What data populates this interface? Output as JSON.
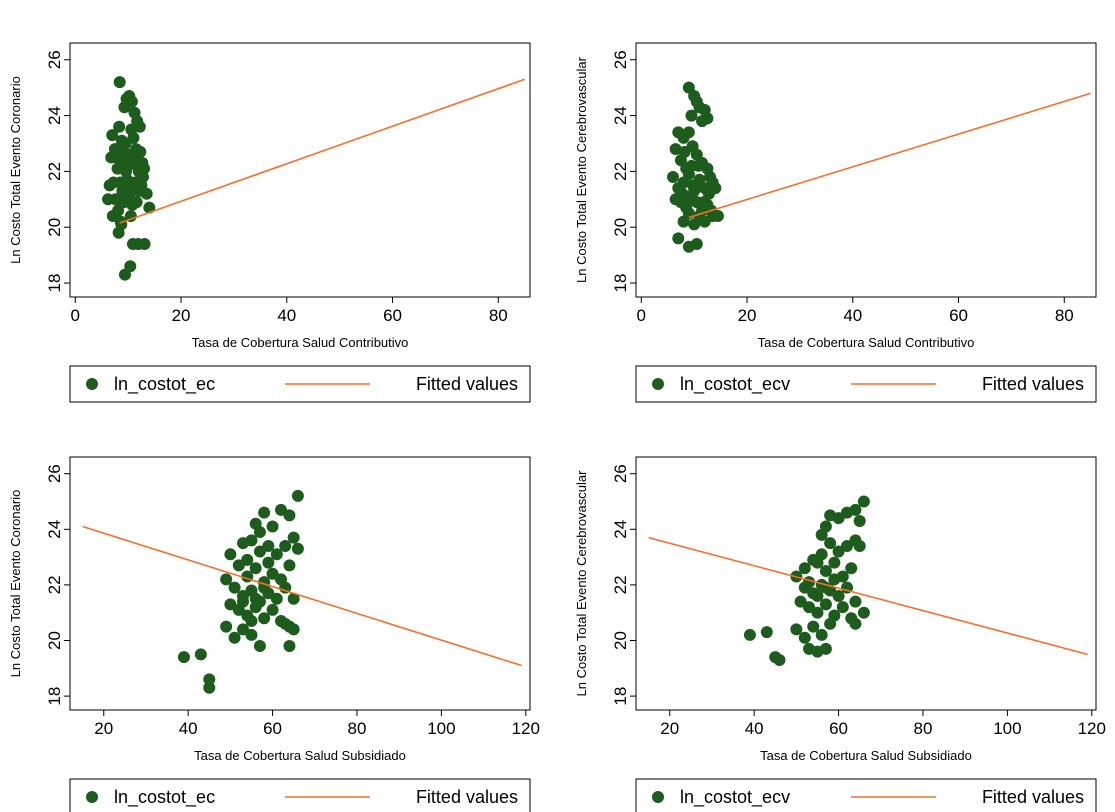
{
  "colors": {
    "points": "#1d5c1d",
    "fitted": "#f4702a",
    "axis": "#000000",
    "background": "#ffffff"
  },
  "chart_data": [
    {
      "type": "scatter",
      "xlabel": "Tasa de Cobertura Salud Contributivo",
      "ylabel": "Ln Costo Total Evento Coronario",
      "xticks": [
        0,
        20,
        40,
        60,
        80
      ],
      "yticks": [
        18,
        20,
        22,
        24,
        26
      ],
      "xlim": [
        -1,
        86
      ],
      "ylim": [
        17.5,
        26.6
      ],
      "grid": false,
      "legend": {
        "position": "bottom",
        "entries": [
          "ln_costot_ec",
          "Fitted values"
        ]
      },
      "series": [
        {
          "name": "ln_costot_ec",
          "kind": "scatter",
          "points": [
            [
              8.4,
              25.2
            ],
            [
              7,
              23.3
            ],
            [
              7.5,
              22.8
            ],
            [
              8,
              22.1
            ],
            [
              8.5,
              21.6
            ],
            [
              9,
              22.4
            ],
            [
              9.5,
              23
            ],
            [
              10,
              22.2
            ],
            [
              10.5,
              21.4
            ],
            [
              11,
              23.2
            ],
            [
              11.5,
              22.8
            ],
            [
              12,
              22
            ],
            [
              12.5,
              21.5
            ],
            [
              13,
              22.1
            ],
            [
              13.5,
              21.2
            ],
            [
              14,
              20.7
            ],
            [
              7.2,
              21.6
            ],
            [
              7.6,
              21
            ],
            [
              8.1,
              20.6
            ],
            [
              8.6,
              20.2
            ],
            [
              9.2,
              20.9
            ],
            [
              9.8,
              21.7
            ],
            [
              10.3,
              21.2
            ],
            [
              10.8,
              20.8
            ],
            [
              11.3,
              21.6
            ],
            [
              11.8,
              22.3
            ],
            [
              12.3,
              22.7
            ],
            [
              12.8,
              21.8
            ],
            [
              6.8,
              22.5
            ],
            [
              6.5,
              21.5
            ],
            [
              6.2,
              21
            ],
            [
              7.8,
              22.5
            ],
            [
              8.3,
              23.6
            ],
            [
              8.8,
              23.1
            ],
            [
              9.3,
              24.3
            ],
            [
              9.7,
              24.6
            ],
            [
              10.2,
              24.7
            ],
            [
              10.7,
              24.5
            ],
            [
              11.2,
              24.1
            ],
            [
              11.7,
              23.8
            ],
            [
              12.2,
              23.6
            ],
            [
              12.7,
              22.3
            ],
            [
              9.1,
              22.8
            ],
            [
              9.6,
              22
            ],
            [
              10.1,
              21.6
            ],
            [
              10.6,
              23.5
            ],
            [
              11.1,
              22.4
            ],
            [
              11.6,
              20.9
            ],
            [
              12.1,
              21.3
            ],
            [
              7.1,
              20.4
            ],
            [
              8.2,
              19.8
            ],
            [
              8.7,
              20.1
            ],
            [
              10.9,
              19.4
            ],
            [
              11.9,
              19.4
            ],
            [
              13.1,
              19.4
            ],
            [
              9.4,
              18.3
            ],
            [
              10.4,
              18.6
            ],
            [
              9.9,
              22.6
            ],
            [
              8.9,
              21.3
            ],
            [
              10.5,
              20.4
            ]
          ]
        },
        {
          "name": "Fitted values",
          "kind": "line",
          "points": [
            [
              8.4,
              20.15
            ],
            [
              85,
              25.3
            ]
          ]
        }
      ]
    },
    {
      "type": "scatter",
      "xlabel": "Tasa de Cobertura Salud Contributivo",
      "ylabel": "Ln Costo Total Evento Cerebrovascular",
      "xticks": [
        0,
        20,
        40,
        60,
        80
      ],
      "yticks": [
        18,
        20,
        22,
        24,
        26
      ],
      "xlim": [
        -1,
        86
      ],
      "ylim": [
        17.5,
        26.6
      ],
      "grid": false,
      "legend": {
        "position": "bottom",
        "entries": [
          "ln_costot_ecv",
          "Fitted values"
        ]
      },
      "series": [
        {
          "name": "ln_costot_ecv",
          "kind": "scatter",
          "points": [
            [
              9,
              25
            ],
            [
              10,
              24.7
            ],
            [
              11,
              24.3
            ],
            [
              12,
              24.2
            ],
            [
              12.5,
              23.9
            ],
            [
              10.5,
              24.5
            ],
            [
              9.5,
              24
            ],
            [
              11.5,
              23.8
            ],
            [
              7,
              23.4
            ],
            [
              8,
              23.2
            ],
            [
              9,
              23.4
            ],
            [
              6.5,
              22.8
            ],
            [
              7.5,
              22.4
            ],
            [
              8.5,
              22.1
            ],
            [
              9.5,
              22.2
            ],
            [
              10.5,
              22.6
            ],
            [
              11.5,
              22.3
            ],
            [
              12.5,
              22.1
            ],
            [
              13.5,
              21.6
            ],
            [
              6,
              21.8
            ],
            [
              7,
              21.4
            ],
            [
              8,
              21.6
            ],
            [
              9,
              21.9
            ],
            [
              10,
              21.3
            ],
            [
              11,
              21.7
            ],
            [
              12,
              21.4
            ],
            [
              13,
              21.8
            ],
            [
              14,
              21.4
            ],
            [
              6.5,
              21
            ],
            [
              7.5,
              20.9
            ],
            [
              8.5,
              20.7
            ],
            [
              9.5,
              21.1
            ],
            [
              10.5,
              20.9
            ],
            [
              11.5,
              20.6
            ],
            [
              12.5,
              20.8
            ],
            [
              13.5,
              20.4
            ],
            [
              14.5,
              20.4
            ],
            [
              8,
              20.2
            ],
            [
              9,
              20.5
            ],
            [
              10,
              20.1
            ],
            [
              11,
              20.4
            ],
            [
              12,
              20.2
            ],
            [
              7,
              19.6
            ],
            [
              9,
              19.3
            ],
            [
              10.5,
              19.4
            ],
            [
              8.2,
              22.7
            ],
            [
              9.7,
              22.9
            ],
            [
              10.8,
              22.2
            ],
            [
              7.8,
              21.2
            ],
            [
              8.8,
              20.9
            ],
            [
              9.8,
              21.5
            ],
            [
              11.8,
              20.9
            ],
            [
              12.8,
              21.2
            ],
            [
              13.2,
              20.6
            ]
          ]
        },
        {
          "name": "Fitted values",
          "kind": "line",
          "points": [
            [
              9,
              20.35
            ],
            [
              85,
              24.8
            ]
          ]
        }
      ]
    },
    {
      "type": "scatter",
      "xlabel": "Tasa de Cobertura Salud Subsidiado",
      "ylabel": "Ln Costo Total Evento Coronario",
      "xticks": [
        20,
        40,
        60,
        80,
        100,
        120
      ],
      "yticks": [
        18,
        20,
        22,
        24,
        26
      ],
      "xlim": [
        12,
        121
      ],
      "ylim": [
        17.5,
        26.6
      ],
      "grid": false,
      "legend": {
        "position": "bottom",
        "entries": [
          "ln_costot_ec",
          "Fitted values"
        ]
      },
      "series": [
        {
          "name": "ln_costot_ec",
          "kind": "scatter",
          "points": [
            [
              66,
              25.2
            ],
            [
              64,
              24.5
            ],
            [
              62,
              24.7
            ],
            [
              60,
              24.1
            ],
            [
              58,
              24.6
            ],
            [
              56,
              24.2
            ],
            [
              57,
              23.9
            ],
            [
              55,
              23.6
            ],
            [
              53,
              23.5
            ],
            [
              65,
              23.7
            ],
            [
              63,
              23.4
            ],
            [
              61,
              23.1
            ],
            [
              59,
              23.4
            ],
            [
              57,
              23.2
            ],
            [
              50,
              23.1
            ],
            [
              52,
              22.7
            ],
            [
              54,
              22.3
            ],
            [
              56,
              22.6
            ],
            [
              58,
              22.1
            ],
            [
              60,
              22.4
            ],
            [
              62,
              22.2
            ],
            [
              64,
              22.7
            ],
            [
              66,
              23.3
            ],
            [
              49,
              22.2
            ],
            [
              51,
              21.9
            ],
            [
              53,
              21.6
            ],
            [
              55,
              21.8
            ],
            [
              57,
              21.4
            ],
            [
              59,
              21.7
            ],
            [
              61,
              21.5
            ],
            [
              63,
              21.9
            ],
            [
              65,
              21.5
            ],
            [
              50,
              21.3
            ],
            [
              52,
              21.1
            ],
            [
              54,
              20.9
            ],
            [
              56,
              21.2
            ],
            [
              58,
              20.8
            ],
            [
              60,
              21.1
            ],
            [
              62,
              20.7
            ],
            [
              64,
              20.5
            ],
            [
              65,
              20.4
            ],
            [
              49,
              20.5
            ],
            [
              51,
              20.1
            ],
            [
              53,
              20.4
            ],
            [
              55,
              20.2
            ],
            [
              57,
              19.8
            ],
            [
              63,
              20.6
            ],
            [
              64,
              19.8
            ],
            [
              54,
              22.9
            ],
            [
              56,
              21.5
            ],
            [
              58,
              21.9
            ],
            [
              53,
              21.4
            ],
            [
              55,
              20.7
            ],
            [
              59,
              22.8
            ],
            [
              39,
              19.4
            ],
            [
              43,
              19.5
            ],
            [
              45,
              18.6
            ],
            [
              45,
              18.3
            ]
          ]
        },
        {
          "name": "Fitted values",
          "kind": "line",
          "points": [
            [
              15,
              24.1
            ],
            [
              119,
              19.1
            ]
          ]
        }
      ]
    },
    {
      "type": "scatter",
      "xlabel": "Tasa de Cobertura Salud Subsidiado",
      "ylabel": "Ln Costo Total Evento Cerebrovascular",
      "xticks": [
        20,
        40,
        60,
        80,
        100,
        120
      ],
      "yticks": [
        18,
        20,
        22,
        24,
        26
      ],
      "xlim": [
        12,
        121
      ],
      "ylim": [
        17.5,
        26.6
      ],
      "grid": false,
      "legend": {
        "position": "bottom",
        "entries": [
          "ln_costot_ecv",
          "Fitted values"
        ]
      },
      "series": [
        {
          "name": "ln_costot_ecv",
          "kind": "scatter",
          "points": [
            [
              66,
              25
            ],
            [
              64,
              24.7
            ],
            [
              62,
              24.6
            ],
            [
              60,
              24.4
            ],
            [
              58,
              24.5
            ],
            [
              57,
              24.1
            ],
            [
              56,
              23.8
            ],
            [
              65,
              24.3
            ],
            [
              64,
              23.6
            ],
            [
              62,
              23.4
            ],
            [
              60,
              23.2
            ],
            [
              58,
              23.5
            ],
            [
              56,
              23.1
            ],
            [
              54,
              22.9
            ],
            [
              52,
              22.6
            ],
            [
              55,
              22.8
            ],
            [
              57,
              22.5
            ],
            [
              59,
              22.2
            ],
            [
              61,
              22.3
            ],
            [
              63,
              22.6
            ],
            [
              65,
              23.4
            ],
            [
              50,
              22.3
            ],
            [
              52,
              21.9
            ],
            [
              54,
              21.7
            ],
            [
              56,
              22
            ],
            [
              58,
              21.8
            ],
            [
              60,
              21.6
            ],
            [
              62,
              21.9
            ],
            [
              64,
              21.4
            ],
            [
              66,
              21
            ],
            [
              51,
              21.4
            ],
            [
              53,
              21.2
            ],
            [
              55,
              21
            ],
            [
              57,
              21.3
            ],
            [
              59,
              20.9
            ],
            [
              61,
              21.2
            ],
            [
              63,
              20.8
            ],
            [
              64,
              20.6
            ],
            [
              50,
              20.4
            ],
            [
              52,
              20.1
            ],
            [
              54,
              20.5
            ],
            [
              56,
              20.2
            ],
            [
              58,
              20.6
            ],
            [
              53,
              19.7
            ],
            [
              55,
              19.6
            ],
            [
              57,
              19.7
            ],
            [
              55,
              21.6
            ],
            [
              53,
              22.1
            ],
            [
              57,
              21.9
            ],
            [
              59,
              22.8
            ],
            [
              39,
              20.2
            ],
            [
              43,
              20.3
            ],
            [
              45,
              19.4
            ],
            [
              46,
              19.3
            ]
          ]
        },
        {
          "name": "Fitted values",
          "kind": "line",
          "points": [
            [
              15,
              23.7
            ],
            [
              119,
              19.5
            ]
          ]
        }
      ]
    }
  ]
}
